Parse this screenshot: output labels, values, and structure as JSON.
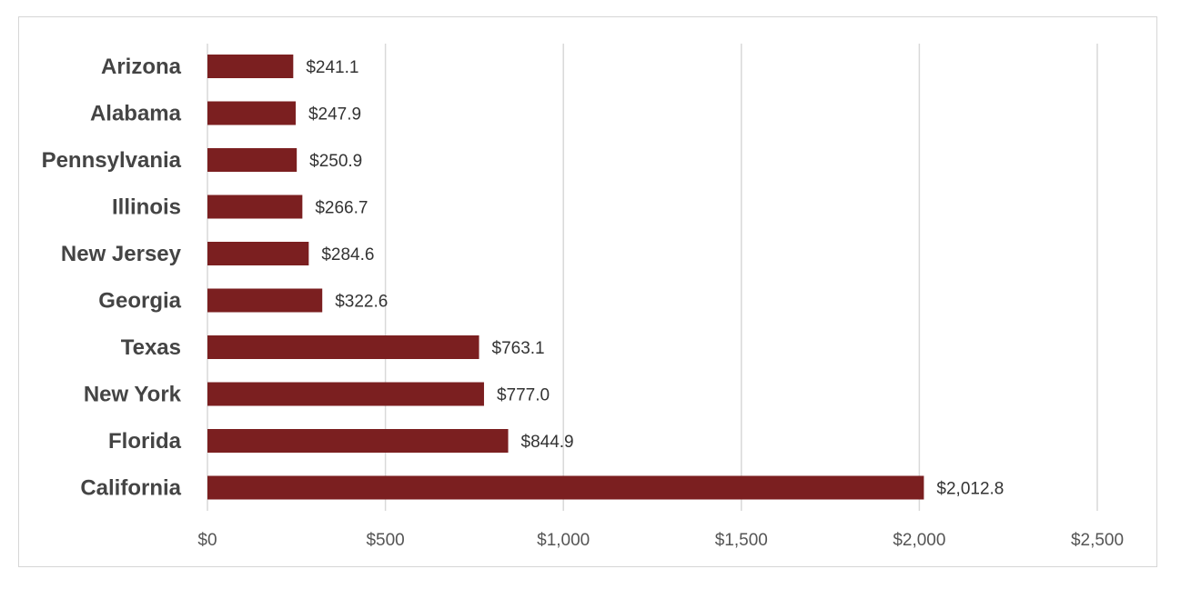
{
  "chart_data": {
    "type": "bar",
    "orientation": "horizontal",
    "title": "",
    "xlabel": "",
    "ylabel": "",
    "categories": [
      "Arizona",
      "Alabama",
      "Pennsylvania",
      "Illinois",
      "New Jersey",
      "Georgia",
      "Texas",
      "New York",
      "Florida",
      "California"
    ],
    "values": [
      241.1,
      247.9,
      250.9,
      266.7,
      284.6,
      322.6,
      763.1,
      777.0,
      844.9,
      2012.8
    ],
    "data_labels": [
      "$241.1",
      "$247.9",
      "$250.9",
      "$266.7",
      "$284.6",
      "$322.6",
      "$763.1",
      "$777.0",
      "$844.9",
      "$2,012.8"
    ],
    "xlim": [
      0,
      2500
    ],
    "x_ticks": [
      0,
      500,
      1000,
      1500,
      2000,
      2500
    ],
    "x_tick_labels": [
      "$0",
      "$500",
      "$1,000",
      "$1,500",
      "$2,000",
      "$2,500"
    ],
    "grid": "vertical",
    "legend": "none",
    "bar_color": "#7b1f20",
    "grid_color": "#d9d9d9"
  }
}
